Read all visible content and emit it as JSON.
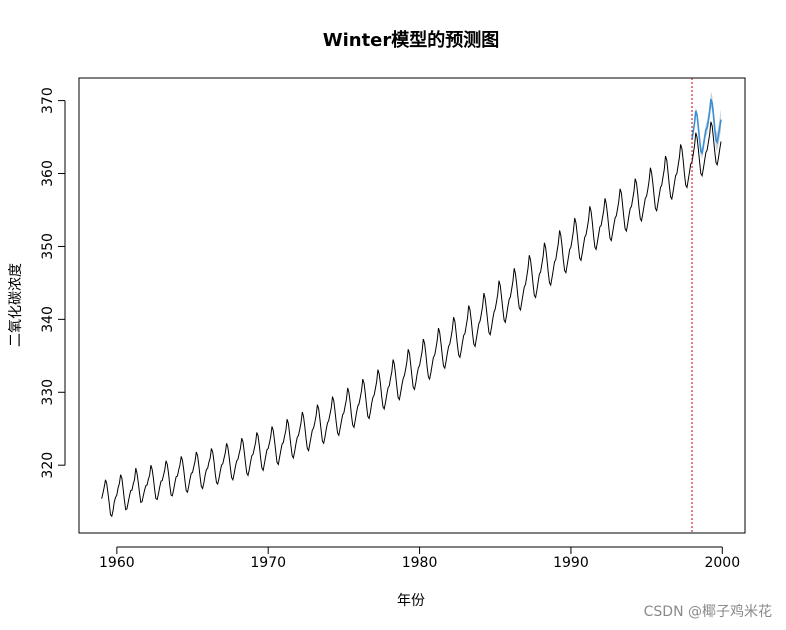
{
  "chart_data": {
    "type": "line",
    "title": "Winter模型的预测图",
    "xlabel": "年份",
    "ylabel": "二氧化碳浓度",
    "xlim": [
      1957.5,
      2001.5
    ],
    "ylim": [
      310.7,
      373.1
    ],
    "x_ticks": [
      1960,
      1970,
      1980,
      1990,
      2000
    ],
    "y_ticks": [
      320,
      330,
      340,
      350,
      360,
      370
    ],
    "x_tick_labels": [
      "1960",
      "1970",
      "1980",
      "1990",
      "2000"
    ],
    "y_tick_labels": [
      "320",
      "330",
      "340",
      "350",
      "360",
      "370"
    ],
    "grid": false,
    "legend": "none",
    "forecast_start_line": {
      "x": 1998.0,
      "color": "#cc0000",
      "style": "dashed"
    },
    "series": [
      {
        "role": "observed",
        "color": "#000000",
        "start": 1959.0,
        "step": 0.08333,
        "values": [
          315.4,
          316.2,
          317.0,
          318.0,
          317.5,
          316.1,
          314.7,
          313.2,
          313.0,
          313.8,
          315.0,
          315.6,
          315.9,
          316.9,
          317.5,
          318.7,
          318.2,
          316.8,
          315.2,
          313.9,
          314.0,
          314.9,
          315.8,
          316.5,
          316.6,
          317.4,
          318.0,
          319.6,
          318.9,
          317.6,
          316.2,
          314.9,
          315.0,
          315.8,
          316.6,
          317.2,
          317.3,
          318.1,
          318.6,
          320.0,
          319.4,
          318.2,
          316.6,
          315.4,
          315.3,
          316.1,
          317.0,
          317.8,
          317.9,
          318.6,
          319.4,
          320.6,
          320.1,
          318.8,
          317.2,
          315.9,
          315.8,
          316.6,
          317.6,
          318.4,
          318.5,
          319.3,
          320.0,
          321.2,
          320.7,
          319.4,
          317.8,
          316.5,
          316.3,
          317.1,
          318.1,
          318.9,
          319.0,
          319.8,
          320.5,
          321.8,
          321.3,
          320.0,
          318.4,
          317.1,
          316.8,
          317.6,
          318.6,
          319.4,
          319.6,
          320.4,
          321.0,
          322.3,
          321.8,
          320.5,
          318.9,
          317.6,
          317.4,
          318.2,
          319.2,
          320.0,
          320.2,
          321.0,
          321.7,
          323.0,
          322.5,
          321.2,
          319.6,
          318.3,
          318.0,
          318.8,
          319.8,
          320.6,
          320.8,
          321.6,
          322.3,
          323.7,
          323.2,
          321.9,
          320.3,
          318.9,
          318.6,
          319.4,
          320.4,
          321.3,
          321.5,
          322.3,
          323.1,
          324.5,
          324.0,
          322.6,
          321.0,
          319.6,
          319.3,
          320.2,
          321.2,
          322.1,
          322.3,
          323.1,
          323.9,
          325.3,
          324.8,
          323.4,
          321.8,
          320.4,
          320.1,
          321.0,
          322.0,
          322.9,
          323.1,
          324.0,
          324.8,
          326.3,
          325.7,
          324.3,
          322.7,
          321.3,
          321.0,
          321.9,
          322.9,
          323.8,
          324.1,
          324.9,
          325.8,
          327.3,
          326.7,
          325.3,
          323.7,
          322.3,
          322.0,
          322.9,
          323.9,
          324.8,
          325.1,
          325.9,
          326.8,
          328.3,
          327.7,
          326.3,
          324.7,
          323.3,
          323.0,
          323.9,
          324.9,
          325.8,
          326.1,
          327.0,
          327.9,
          329.4,
          328.8,
          327.4,
          325.8,
          324.4,
          324.1,
          325.0,
          326.0,
          326.9,
          327.2,
          328.1,
          329.0,
          330.6,
          330.0,
          328.6,
          326.9,
          325.5,
          325.2,
          326.1,
          327.2,
          328.1,
          328.4,
          329.3,
          330.2,
          331.8,
          331.2,
          329.8,
          328.1,
          326.7,
          326.4,
          327.3,
          328.4,
          329.3,
          329.6,
          330.5,
          331.5,
          333.1,
          332.5,
          331.1,
          329.4,
          328.0,
          327.7,
          328.6,
          329.7,
          330.6,
          330.9,
          331.9,
          332.8,
          334.5,
          333.9,
          332.4,
          330.7,
          329.3,
          329.0,
          329.9,
          331.0,
          331.9,
          332.3,
          333.2,
          334.2,
          335.9,
          335.3,
          333.8,
          332.1,
          330.7,
          330.4,
          331.3,
          332.4,
          333.3,
          333.7,
          334.6,
          335.6,
          337.3,
          336.7,
          335.2,
          333.5,
          332.1,
          331.8,
          332.7,
          333.8,
          334.8,
          335.1,
          336.1,
          337.1,
          338.8,
          338.2,
          336.7,
          335.0,
          333.6,
          333.3,
          334.2,
          335.3,
          336.3,
          336.6,
          337.6,
          338.6,
          340.3,
          339.7,
          338.2,
          336.5,
          335.1,
          334.8,
          335.7,
          336.8,
          337.8,
          338.1,
          339.1,
          340.2,
          341.9,
          341.3,
          339.8,
          338.1,
          336.6,
          336.3,
          337.3,
          338.4,
          339.4,
          339.8,
          340.8,
          341.8,
          343.6,
          342.9,
          341.4,
          339.7,
          338.2,
          337.9,
          338.9,
          340.0,
          341.0,
          341.4,
          342.4,
          343.5,
          345.3,
          344.6,
          343.1,
          341.4,
          339.9,
          339.6,
          340.6,
          341.7,
          342.7,
          343.1,
          344.1,
          345.2,
          347.0,
          346.3,
          344.8,
          343.1,
          341.6,
          341.3,
          342.3,
          343.4,
          344.4,
          344.8,
          345.9,
          347.0,
          348.8,
          348.1,
          346.6,
          344.8,
          343.3,
          343.0,
          344.0,
          345.1,
          346.2,
          346.5,
          347.6,
          348.7,
          350.5,
          349.8,
          348.3,
          346.5,
          345.0,
          344.7,
          345.7,
          346.8,
          347.9,
          348.2,
          349.3,
          350.4,
          352.2,
          351.5,
          350.0,
          348.2,
          346.7,
          346.4,
          347.4,
          348.5,
          349.6,
          349.9,
          351.0,
          352.1,
          353.9,
          353.2,
          351.7,
          349.9,
          348.4,
          348.1,
          349.1,
          350.2,
          351.3,
          351.6,
          352.6,
          353.7,
          355.5,
          354.8,
          353.2,
          351.4,
          349.9,
          349.6,
          350.6,
          351.7,
          352.7,
          352.9,
          353.9,
          354.9,
          356.6,
          355.9,
          354.4,
          352.6,
          351.1,
          350.8,
          351.8,
          352.9,
          353.9,
          354.2,
          355.2,
          356.2,
          357.9,
          357.3,
          355.7,
          353.9,
          352.4,
          352.1,
          353.1,
          354.2,
          355.2,
          355.5,
          356.5,
          357.6,
          359.3,
          358.7,
          357.1,
          355.3,
          353.8,
          353.5,
          354.5,
          355.6,
          356.6,
          356.9,
          357.9,
          359.0,
          360.8,
          360.1,
          358.6,
          356.8,
          355.2,
          354.9,
          355.9,
          357.0,
          358.1,
          358.4,
          359.5,
          360.6,
          362.4,
          361.8,
          360.2,
          358.4,
          356.8,
          356.5,
          357.5,
          358.6,
          359.7,
          360.0,
          361.1,
          362.2,
          364.0,
          363.4,
          361.8,
          360.0,
          358.4,
          358.1,
          359.1,
          360.2,
          361.3,
          361.6,
          362.7,
          363.8,
          365.6,
          365.0,
          363.4,
          361.6,
          360.0,
          359.7,
          360.7,
          361.8,
          362.9,
          363.2,
          364.3,
          365.4,
          367.1,
          366.5,
          364.9,
          363.1,
          361.5,
          361.2,
          362.2,
          363.3,
          364.4
        ]
      },
      {
        "role": "forecast",
        "color": "#3b8fd4",
        "band_color": "#c9d3dc",
        "start": 1998.0,
        "step": 0.08333,
        "values": [
          364.7,
          365.8,
          366.9,
          368.6,
          368.0,
          366.4,
          364.6,
          363.0,
          362.8,
          363.8,
          364.9,
          366.0,
          366.3,
          367.4,
          368.5,
          370.2,
          369.6,
          368.0,
          366.2,
          364.6,
          364.3,
          365.3,
          366.4,
          367.4
        ],
        "band_half_width": [
          0.3,
          0.35,
          0.4,
          0.45,
          0.5,
          0.55,
          0.6,
          0.65,
          0.7,
          0.75,
          0.8,
          0.85,
          0.9,
          0.95,
          1.0,
          1.05,
          1.1,
          1.15,
          1.2,
          1.25,
          1.3,
          1.35,
          1.4,
          1.45
        ]
      }
    ]
  },
  "watermark": "CSDN @椰子鸡米花"
}
